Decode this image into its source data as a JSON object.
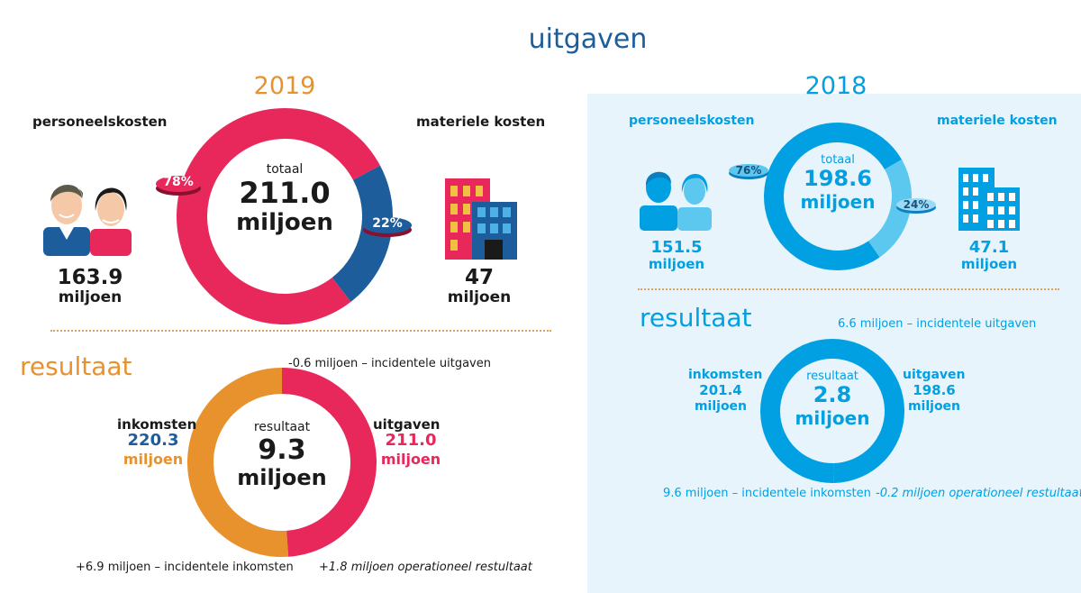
{
  "title": "uitgaven",
  "colors": {
    "pink": "#e8285a",
    "blue_dark": "#1d5d9b",
    "orange": "#e8922e",
    "light_blue": "#00a0e3",
    "light_blue_secondary": "#5cc8f0",
    "panel_bg": "#e8f4fb"
  },
  "y2019": {
    "year": "2019",
    "personnel_label": "personeelskosten",
    "material_label": "materiele kosten",
    "personnel_amount": "163.9",
    "personnel_unit": "miljoen",
    "material_amount": "47",
    "material_unit": "miljoen",
    "total_label": "totaal",
    "total_amount": "211.0",
    "total_unit": "miljoen",
    "personnel_pct": "78%",
    "material_pct": "22%",
    "resultaat_title": "resultaat",
    "income_label": "inkomsten",
    "income_amount": "220.3",
    "income_unit": "miljoen",
    "expense_label": "uitgaven",
    "expense_amount": "211.0",
    "expense_unit": "miljoen",
    "result_label": "resultaat",
    "result_amount": "9.3",
    "result_unit": "miljoen",
    "note_top": "-0.6 miljoen – incidentele uitgaven",
    "note_bottom_left": "+6.9 miljoen – incidentele inkomsten",
    "note_bottom_right": "+1.8 miljoen operationeel restultaat"
  },
  "y2018": {
    "year": "2018",
    "personnel_label": "personeelskosten",
    "material_label": "materiele kosten",
    "personnel_amount": "151.5",
    "personnel_unit": "miljoen",
    "material_amount": "47.1",
    "material_unit": "miljoen",
    "total_label": "totaal",
    "total_amount": "198.6",
    "total_unit": "miljoen",
    "personnel_pct": "76%",
    "material_pct": "24%",
    "resultaat_title": "resultaat",
    "income_label": "inkomsten",
    "income_amount": "201.4",
    "income_unit": "miljoen",
    "expense_label": "uitgaven",
    "expense_amount": "198.6",
    "expense_unit": "miljoen",
    "result_label": "resultaat",
    "result_amount": "2.8",
    "result_unit": "miljoen",
    "note_top": "6.6 miljoen – incidentele uitgaven",
    "note_bottom_left": "9.6 miljoen – incidentele inkomsten",
    "note_bottom_right": "-0.2 miljoen operationeel restultaat"
  },
  "chart_data": [
    {
      "type": "pie",
      "title": "2019 – uitgaven totaal",
      "categories": [
        "personeelskosten",
        "materiele kosten"
      ],
      "values": [
        163.9,
        47
      ],
      "percentages": [
        78,
        22
      ],
      "total": 211.0,
      "unit": "miljoen",
      "colors": [
        "#e8285a",
        "#1d5d9b"
      ]
    },
    {
      "type": "pie",
      "title": "2019 – resultaat",
      "categories": [
        "inkomsten",
        "uitgaven"
      ],
      "values": [
        220.3,
        211.0
      ],
      "result": 9.3,
      "unit": "miljoen",
      "colors": [
        "#e8922e",
        "#e8285a"
      ]
    },
    {
      "type": "pie",
      "title": "2018 – uitgaven totaal",
      "categories": [
        "personeelskosten",
        "materiele kosten"
      ],
      "values": [
        151.5,
        47.1
      ],
      "percentages": [
        76,
        24
      ],
      "total": 198.6,
      "unit": "miljoen",
      "colors": [
        "#00a0e3",
        "#5cc8f0"
      ]
    },
    {
      "type": "pie",
      "title": "2018 – resultaat",
      "categories": [
        "inkomsten",
        "uitgaven"
      ],
      "values": [
        201.4,
        198.6
      ],
      "result": 2.8,
      "unit": "miljoen",
      "colors": [
        "#00a0e3",
        "#00a0e3"
      ]
    }
  ]
}
